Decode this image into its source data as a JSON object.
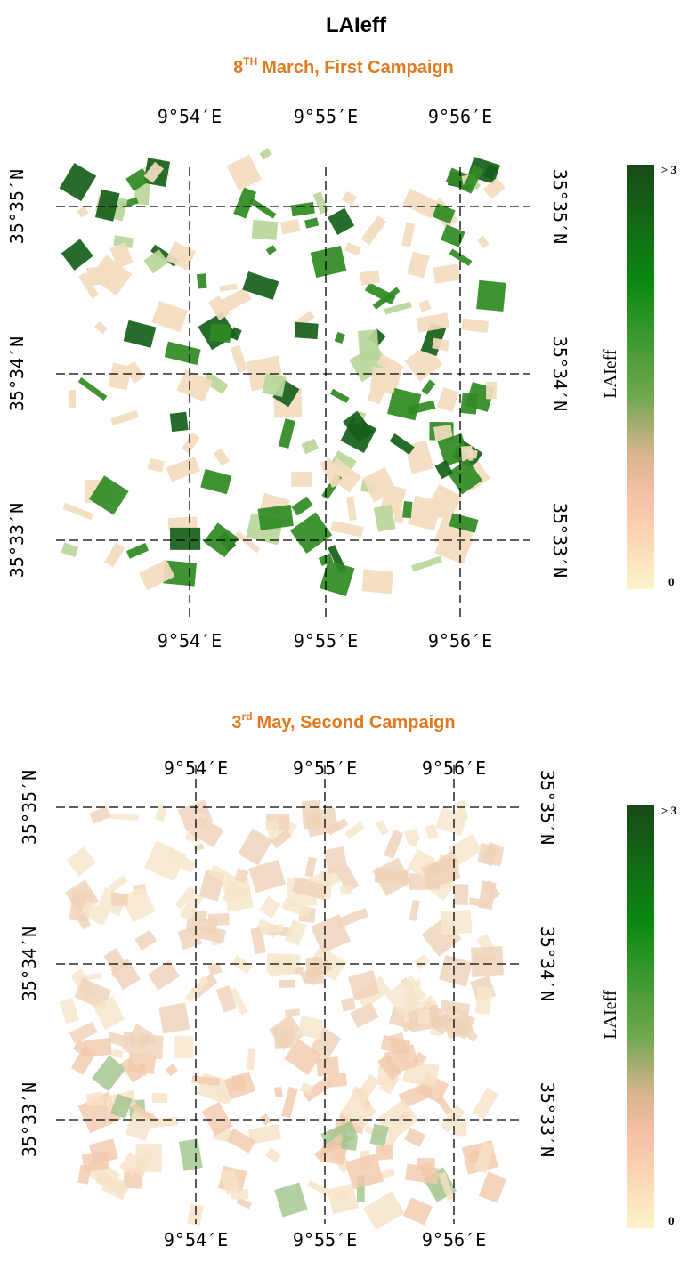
{
  "title": "LAIeff",
  "panels": [
    {
      "subtitle": {
        "day": "8",
        "suffix": "TH",
        "text": "March, First Campaign"
      },
      "top_labels": [
        "9°54′E",
        "9°55′E",
        "9°56′E"
      ],
      "bottom_labels": [
        "9°54′E",
        "9°55′E",
        "9°56′E"
      ],
      "left_labels": [
        "35°35′N",
        "35°34′N",
        "35°33′N"
      ],
      "right_labels": [
        "35°35′N",
        "35°34′N",
        "35°33′N"
      ],
      "colorbar": {
        "label": "LAIeff",
        "max_label": "> 3",
        "min_label": "0"
      }
    },
    {
      "subtitle": {
        "day": "3",
        "suffix": "rd",
        "text": "May, Second Campaign"
      },
      "top_labels": [
        "9°54′E",
        "9°55′E",
        "9°56′E"
      ],
      "bottom_labels": [
        "9°54′E",
        "9°55′E",
        "9°56′E"
      ],
      "left_labels": [
        "35°35′N",
        "35°34′N",
        "35°33′N"
      ],
      "right_labels": [
        "35°35′N",
        "35°34′N",
        "35°33′N"
      ],
      "colorbar": {
        "label": "LAIeff",
        "max_label": "> 3",
        "min_label": "0"
      }
    }
  ]
}
